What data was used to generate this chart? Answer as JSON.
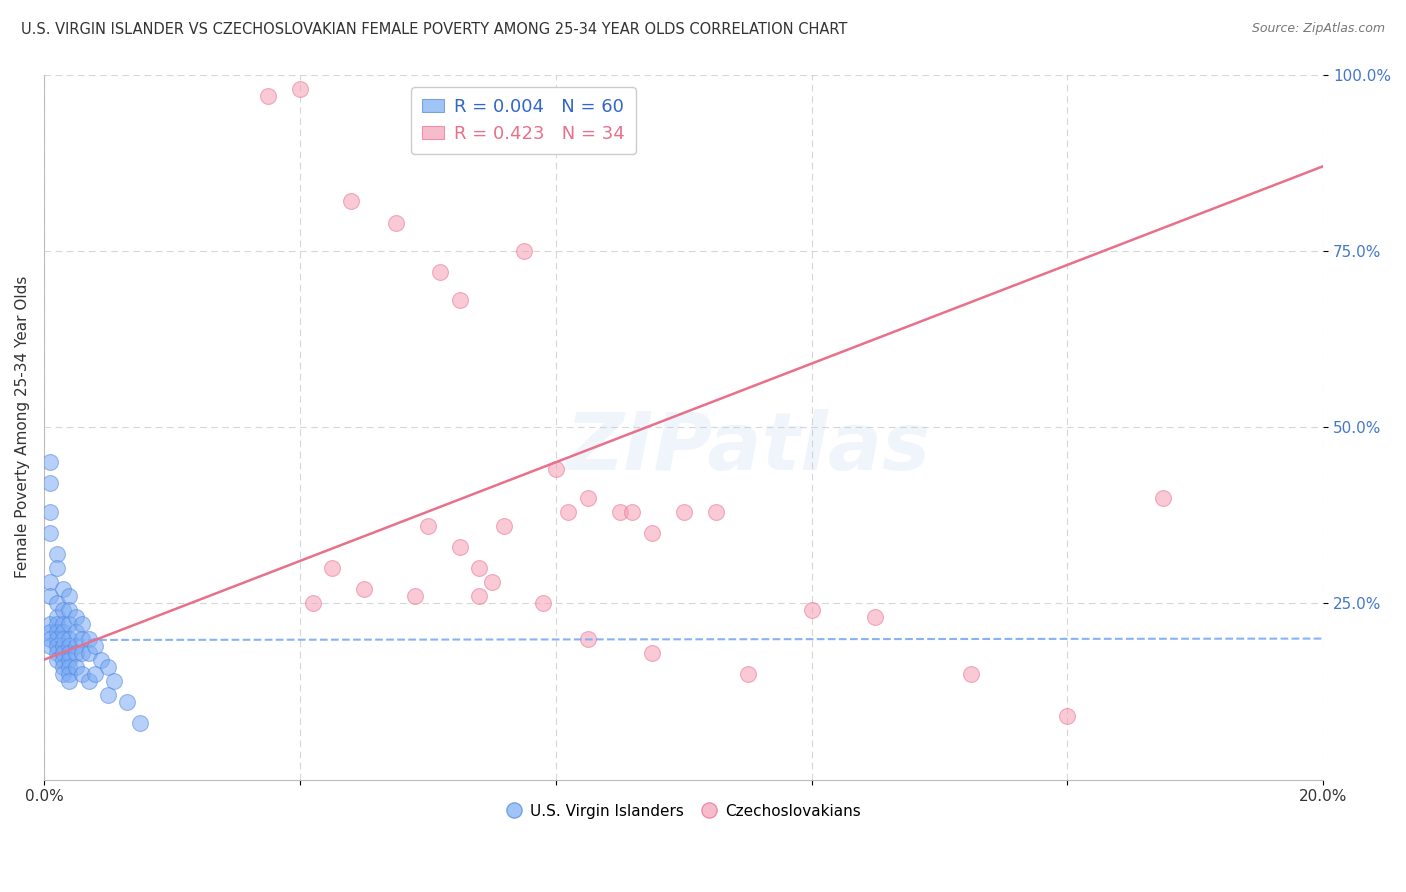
{
  "title": "U.S. VIRGIN ISLANDER VS CZECHOSLOVAKIAN FEMALE POVERTY AMONG 25-34 YEAR OLDS CORRELATION CHART",
  "source": "Source: ZipAtlas.com",
  "ylabel": "Female Poverty Among 25-34 Year Olds",
  "legend_label_1": "U.S. Virgin Islanders",
  "legend_label_2": "Czechoslovakians",
  "R1": 0.004,
  "N1": 60,
  "R2": 0.423,
  "N2": 34,
  "xlim": [
    0.0,
    0.2
  ],
  "ylim": [
    0.0,
    1.0
  ],
  "xticks": [
    0.0,
    0.04,
    0.08,
    0.12,
    0.16,
    0.2
  ],
  "yticks": [
    0.25,
    0.5,
    0.75,
    1.0
  ],
  "ytick_labels": [
    "25.0%",
    "50.0%",
    "75.0%",
    "100.0%"
  ],
  "xtick_labels": [
    "0.0%",
    "",
    "",
    "",
    "",
    "20.0%"
  ],
  "color_blue": "#7AABF5",
  "color_pink": "#F5A0B5",
  "edge_blue": "#5588DD",
  "edge_pink": "#E87090",
  "line_blue_color": "#7AABF5",
  "line_pink_color": "#E8708A",
  "background": "#FFFFFF",
  "watermark": "ZIPatlas",
  "vi_x": [
    0.001,
    0.001,
    0.001,
    0.001,
    0.001,
    0.001,
    0.001,
    0.001,
    0.001,
    0.001,
    0.002,
    0.002,
    0.002,
    0.002,
    0.002,
    0.002,
    0.002,
    0.002,
    0.002,
    0.002,
    0.003,
    0.003,
    0.003,
    0.003,
    0.003,
    0.003,
    0.003,
    0.003,
    0.003,
    0.003,
    0.004,
    0.004,
    0.004,
    0.004,
    0.004,
    0.004,
    0.004,
    0.004,
    0.004,
    0.004,
    0.005,
    0.005,
    0.005,
    0.005,
    0.005,
    0.006,
    0.006,
    0.006,
    0.006,
    0.007,
    0.007,
    0.007,
    0.008,
    0.008,
    0.009,
    0.01,
    0.01,
    0.011,
    0.013,
    0.015
  ],
  "vi_y": [
    0.45,
    0.42,
    0.38,
    0.35,
    0.28,
    0.26,
    0.22,
    0.21,
    0.2,
    0.19,
    0.32,
    0.3,
    0.25,
    0.23,
    0.22,
    0.21,
    0.2,
    0.19,
    0.18,
    0.17,
    0.27,
    0.24,
    0.22,
    0.21,
    0.2,
    0.19,
    0.18,
    0.17,
    0.16,
    0.15,
    0.26,
    0.24,
    0.22,
    0.2,
    0.19,
    0.18,
    0.17,
    0.16,
    0.15,
    0.14,
    0.23,
    0.21,
    0.19,
    0.18,
    0.16,
    0.22,
    0.2,
    0.18,
    0.15,
    0.2,
    0.18,
    0.14,
    0.19,
    0.15,
    0.17,
    0.16,
    0.12,
    0.14,
    0.11,
    0.08
  ],
  "cz_x": [
    0.035,
    0.04,
    0.042,
    0.045,
    0.048,
    0.05,
    0.055,
    0.058,
    0.06,
    0.062,
    0.065,
    0.065,
    0.068,
    0.068,
    0.07,
    0.072,
    0.075,
    0.078,
    0.08,
    0.082,
    0.085,
    0.085,
    0.09,
    0.092,
    0.095,
    0.095,
    0.1,
    0.105,
    0.11,
    0.12,
    0.13,
    0.145,
    0.16,
    0.175
  ],
  "cz_y": [
    0.97,
    0.98,
    0.25,
    0.3,
    0.82,
    0.27,
    0.79,
    0.26,
    0.36,
    0.72,
    0.68,
    0.33,
    0.3,
    0.26,
    0.28,
    0.36,
    0.75,
    0.25,
    0.44,
    0.38,
    0.4,
    0.2,
    0.38,
    0.38,
    0.35,
    0.18,
    0.38,
    0.38,
    0.15,
    0.24,
    0.23,
    0.15,
    0.09,
    0.4
  ],
  "vi_line_y0": 0.198,
  "vi_line_y1": 0.2,
  "cz_line_y0": 0.17,
  "cz_line_y1": 0.87
}
